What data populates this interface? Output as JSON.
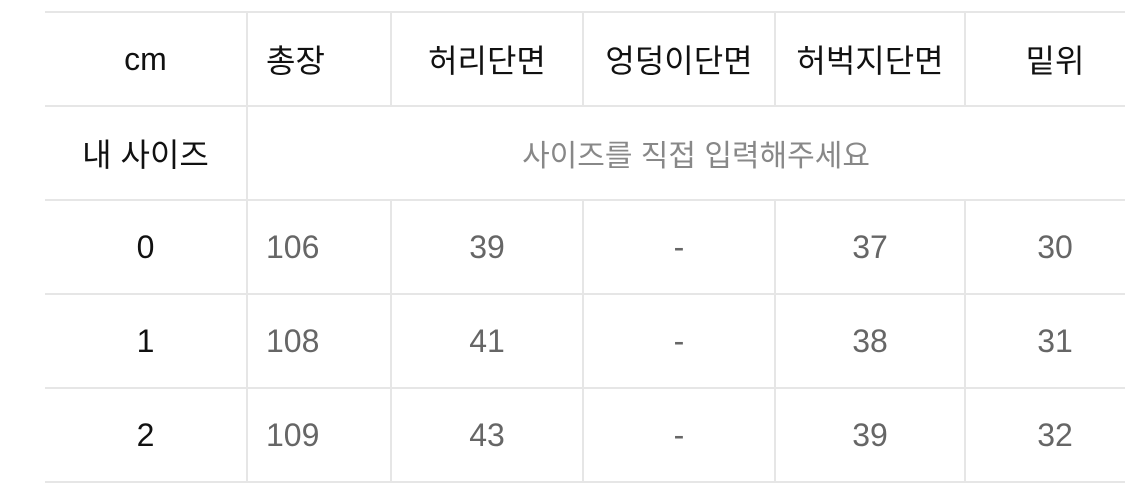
{
  "table": {
    "headers": [
      "cm",
      "총장",
      "허리단면",
      "엉덩이단면",
      "허벅지단면",
      "밑위"
    ],
    "my_size": {
      "label": "내 사이즈",
      "placeholder": "사이즈를 직접 입력해주세요"
    },
    "rows": [
      [
        "0",
        "106",
        "39",
        "-",
        "37",
        "30"
      ],
      [
        "1",
        "108",
        "41",
        "-",
        "38",
        "31"
      ],
      [
        "2",
        "109",
        "43",
        "-",
        "39",
        "32"
      ]
    ]
  }
}
